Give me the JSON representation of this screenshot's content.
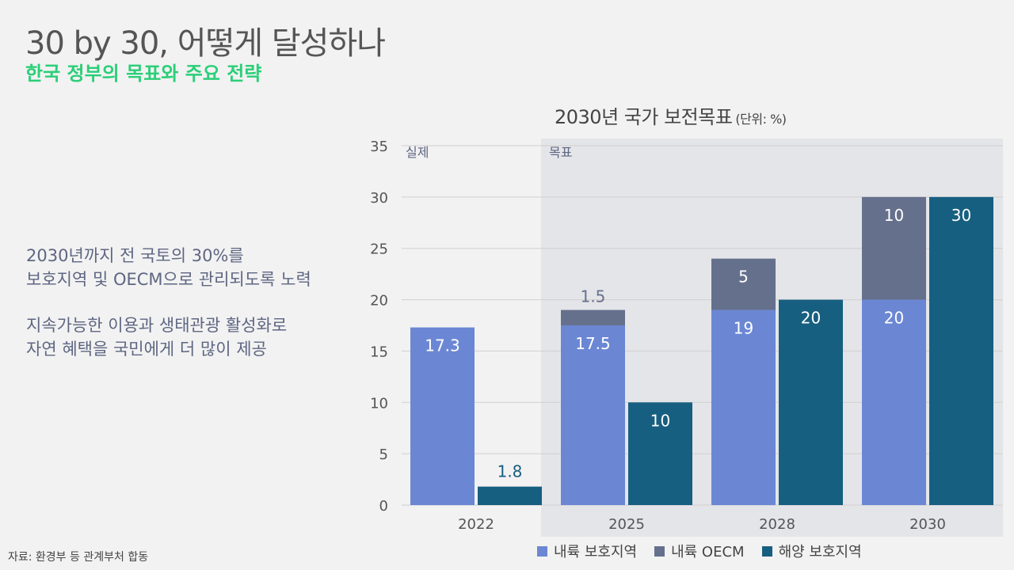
{
  "header": {
    "title": "30 by 30, 어떻게 달성하나",
    "subtitle": "한국 정부의 목표와 주요 전략"
  },
  "description": {
    "para1": [
      "2030년까지 전 국토의 30%를",
      "보호지역 및 OECM으로 관리되도록 노력"
    ],
    "para2": [
      "지속가능한 이용과 생태관광 활성화로",
      "자연 혜택을 국민에게 더 많이 제공"
    ]
  },
  "source": "자료: 환경부 등 관계부처 합동",
  "colors": {
    "land_protected": "#6b87d4",
    "land_oecm": "#65708c",
    "marine_protected": "#175f80",
    "subtitle_green": "#2bcf78",
    "shade": "#e4e5e9"
  },
  "chart_data": {
    "type": "bar",
    "title": "2030년 국가 보전목표",
    "unit_label": "(단위: %)",
    "xlabel": "",
    "ylabel": "",
    "ylim": [
      0,
      35
    ],
    "yticks": [
      0,
      5,
      10,
      15,
      20,
      25,
      30,
      35
    ],
    "grid": true,
    "legend_position": "bottom",
    "categories": [
      "2022",
      "2025",
      "2028",
      "2030"
    ],
    "region_labels": [
      {
        "label": "실제",
        "categories": [
          "2022"
        ]
      },
      {
        "label": "목표",
        "categories": [
          "2025",
          "2028",
          "2030"
        ],
        "shaded": true
      }
    ],
    "series": [
      {
        "name": "내륙 보호지역",
        "stack": "land",
        "values": [
          17.3,
          17.5,
          19,
          20
        ],
        "labels": [
          "17.3",
          "17.5",
          "19",
          "20"
        ]
      },
      {
        "name": "내륙 OECM",
        "stack": "land",
        "values": [
          0,
          1.5,
          5,
          10
        ],
        "labels": [
          "",
          "1.5",
          "5",
          "10"
        ]
      },
      {
        "name": "해양 보호지역",
        "stack": "marine",
        "values": [
          1.8,
          10,
          20,
          30
        ],
        "labels": [
          "1.8",
          "10",
          "20",
          "30"
        ]
      }
    ]
  }
}
